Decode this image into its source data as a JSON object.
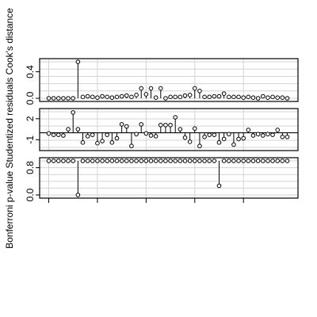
{
  "chart_data": {
    "type": "scatter",
    "ylabel": "Bonferroni p-value                Studentized residuals                Cook's distance",
    "grid": true,
    "n_obs": 50,
    "panels": [
      {
        "name": "cooks-distance",
        "ylim": [
          0,
          0.55
        ],
        "yticks": [
          0.0,
          0.4
        ],
        "ytick_labels": [
          "0.0",
          "0.4"
        ],
        "baseline": 0,
        "values": [
          0.0,
          0.0,
          0.0,
          0.0,
          0.0,
          0.0,
          0.55,
          0.02,
          0.03,
          0.02,
          0.01,
          0.03,
          0.02,
          0.01,
          0.02,
          0.03,
          0.04,
          0.02,
          0.05,
          0.15,
          0.06,
          0.15,
          0.01,
          0.15,
          0.0,
          0.02,
          0.02,
          0.02,
          0.04,
          0.05,
          0.15,
          0.11,
          0.02,
          0.02,
          0.03,
          0.03,
          0.07,
          0.02,
          0.02,
          0.02,
          0.01,
          0.02,
          0.01,
          0.0,
          0.03,
          0.01,
          0.02,
          0.01,
          0.01,
          0.0
        ]
      },
      {
        "name": "studentized-residuals",
        "ylim": [
          -2.1,
          3.0
        ],
        "yticks": [
          -1,
          2
        ],
        "ytick_labels": [
          "-1",
          "2"
        ],
        "baseline": 0,
        "values": [
          -0.1,
          -0.3,
          -0.3,
          -0.4,
          0.5,
          2.9,
          0.5,
          -1.4,
          -0.5,
          -0.3,
          -1.5,
          -1.2,
          -0.3,
          -1.4,
          -0.8,
          1.2,
          0.9,
          -1.9,
          -0.2,
          1.2,
          -0.1,
          -0.4,
          -0.5,
          1.1,
          1.1,
          1.1,
          2.2,
          0.5,
          -0.7,
          -1.3,
          0.6,
          -1.9,
          -0.6,
          -0.3,
          -0.3,
          -1.4,
          -0.9,
          -0.2,
          -1.7,
          -0.9,
          -0.8,
          0.4,
          -0.4,
          -0.2,
          -0.4,
          -0.2,
          -0.3,
          0.4,
          -0.6,
          -0.6
        ]
      },
      {
        "name": "bonferroni-p",
        "ylim": [
          0,
          1
        ],
        "yticks": [
          0.0,
          0.8
        ],
        "ytick_labels": [
          "0.0",
          "0.8"
        ],
        "baseline": 1,
        "values": [
          1,
          1,
          1,
          1,
          1,
          1,
          0.0,
          1,
          1,
          1,
          1,
          1,
          1,
          1,
          1,
          1,
          1,
          1,
          1,
          1,
          1,
          1,
          1,
          1,
          1,
          1,
          1,
          1,
          1,
          1,
          1,
          1,
          1,
          1,
          1,
          0.27,
          1,
          1,
          1,
          1,
          1,
          1,
          1,
          1,
          1,
          1,
          1,
          1,
          1,
          1
        ]
      }
    ]
  }
}
